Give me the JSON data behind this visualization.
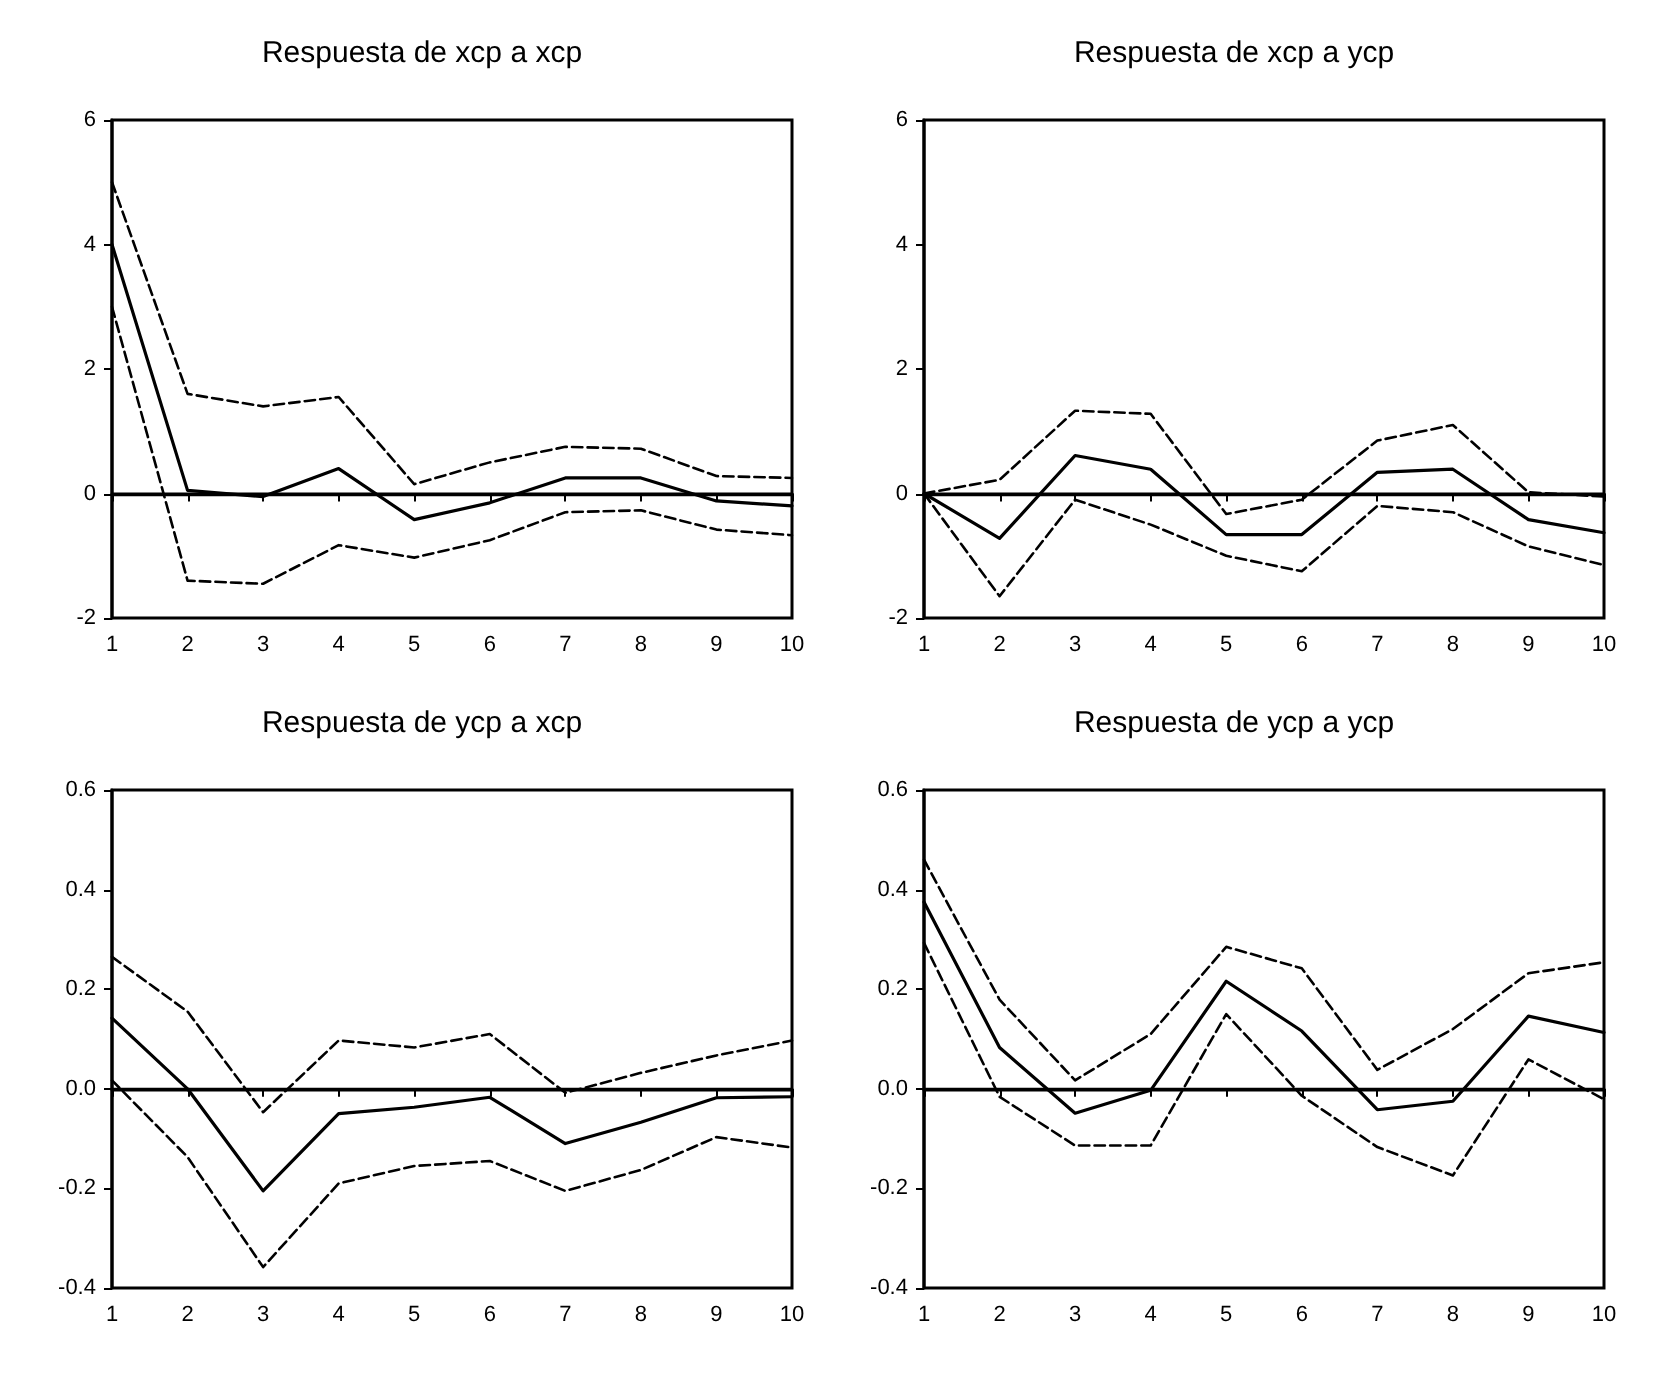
{
  "chart_data": [
    {
      "type": "line",
      "title": "Respuesta de xcp a xcp",
      "x": [
        1,
        2,
        3,
        4,
        5,
        6,
        7,
        8,
        9,
        10
      ],
      "xlim": [
        1,
        10
      ],
      "xticks": [
        1,
        2,
        3,
        4,
        5,
        6,
        7,
        8,
        9,
        10
      ],
      "ylim": [
        -2,
        6
      ],
      "yticks": [
        -2,
        0,
        2,
        4,
        6
      ],
      "grid": false,
      "marker": "none",
      "ref_lines": [
        {
          "axis": "y",
          "value": 0,
          "color": "#000000"
        }
      ],
      "series": [
        {
          "color": "#000000",
          "line_style": "solid",
          "values": [
            4.0,
            0.05,
            -0.05,
            0.4,
            -0.42,
            -0.15,
            0.25,
            0.25,
            -0.12,
            -0.2
          ]
        },
        {
          "color": "#000000",
          "line_style": "dashed",
          "values": [
            5.0,
            1.6,
            1.4,
            1.55,
            0.15,
            0.5,
            0.75,
            0.72,
            0.28,
            0.25
          ]
        },
        {
          "color": "#000000",
          "line_style": "dashed",
          "values": [
            3.0,
            -1.4,
            -1.45,
            -0.83,
            -1.03,
            -0.75,
            -0.3,
            -0.27,
            -0.58,
            -0.67
          ]
        }
      ]
    },
    {
      "type": "line",
      "title": "Respuesta de xcp a ycp",
      "x": [
        1,
        2,
        3,
        4,
        5,
        6,
        7,
        8,
        9,
        10
      ],
      "xlim": [
        1,
        10
      ],
      "xticks": [
        1,
        2,
        3,
        4,
        5,
        6,
        7,
        8,
        9,
        10
      ],
      "ylim": [
        -2,
        6
      ],
      "yticks": [
        -2,
        0,
        2,
        4,
        6
      ],
      "grid": false,
      "marker": "none",
      "ref_lines": [
        {
          "axis": "y",
          "value": 0,
          "color": "#000000"
        }
      ],
      "series": [
        {
          "color": "#000000",
          "line_style": "solid",
          "values": [
            0,
            -0.72,
            0.61,
            0.39,
            -0.66,
            -0.66,
            0.34,
            0.39,
            -0.42,
            -0.63
          ]
        },
        {
          "color": "#000000",
          "line_style": "dashed",
          "values": [
            0,
            0.22,
            1.33,
            1.28,
            -0.33,
            -0.1,
            0.85,
            1.1,
            0.02,
            -0.05
          ]
        },
        {
          "color": "#000000",
          "line_style": "dashed",
          "values": [
            0,
            -1.65,
            -0.1,
            -0.5,
            -1.0,
            -1.25,
            -0.2,
            -0.3,
            -0.85,
            -1.15
          ]
        }
      ]
    },
    {
      "type": "line",
      "title": "Respuesta de ycp a xcp",
      "x": [
        1,
        2,
        3,
        4,
        5,
        6,
        7,
        8,
        9,
        10
      ],
      "xlim": [
        1,
        10
      ],
      "xticks": [
        1,
        2,
        3,
        4,
        5,
        6,
        7,
        8,
        9,
        10
      ],
      "ylim": [
        -0.4,
        0.6
      ],
      "yticks": [
        -0.4,
        -0.2,
        {
          "value": 0,
          "label": "0.0"
        },
        0.2,
        0.4,
        0.6
      ],
      "grid": false,
      "marker": "none",
      "ref_lines": [
        {
          "axis": "y",
          "value": 0,
          "color": "#000000"
        }
      ],
      "series": [
        {
          "color": "#000000",
          "line_style": "solid",
          "values": [
            0.142,
            0.0,
            -0.205,
            -0.05,
            -0.037,
            -0.017,
            -0.11,
            -0.067,
            -0.018,
            -0.016
          ]
        },
        {
          "color": "#000000",
          "line_style": "dashed",
          "values": [
            0.265,
            0.155,
            -0.047,
            0.097,
            0.083,
            0.11,
            -0.008,
            0.032,
            0.067,
            0.097
          ]
        },
        {
          "color": "#000000",
          "line_style": "dashed",
          "values": [
            0.017,
            -0.137,
            -0.358,
            -0.19,
            -0.155,
            -0.145,
            -0.205,
            -0.163,
            -0.097,
            -0.118
          ]
        }
      ]
    },
    {
      "type": "line",
      "title": "Respuesta de ycp a ycp",
      "x": [
        1,
        2,
        3,
        4,
        5,
        6,
        7,
        8,
        9,
        10
      ],
      "xlim": [
        1,
        10
      ],
      "xticks": [
        1,
        2,
        3,
        4,
        5,
        6,
        7,
        8,
        9,
        10
      ],
      "ylim": [
        -0.4,
        0.6
      ],
      "yticks": [
        -0.4,
        -0.2,
        {
          "value": 0,
          "label": "0.0"
        },
        0.2,
        0.4,
        0.6
      ],
      "grid": false,
      "marker": "none",
      "ref_lines": [
        {
          "axis": "y",
          "value": 0,
          "color": "#000000"
        }
      ],
      "series": [
        {
          "color": "#000000",
          "line_style": "solid",
          "values": [
            0.375,
            0.083,
            -0.049,
            -0.003,
            0.216,
            0.116,
            -0.042,
            -0.025,
            0.146,
            0.113
          ]
        },
        {
          "color": "#000000",
          "line_style": "dashed",
          "values": [
            0.46,
            0.179,
            0.017,
            0.11,
            0.285,
            0.242,
            0.038,
            0.12,
            0.232,
            0.254
          ]
        },
        {
          "color": "#000000",
          "line_style": "dashed",
          "values": [
            0.293,
            -0.016,
            -0.114,
            -0.114,
            0.15,
            -0.014,
            -0.117,
            -0.174,
            0.059,
            -0.021
          ]
        }
      ]
    }
  ]
}
